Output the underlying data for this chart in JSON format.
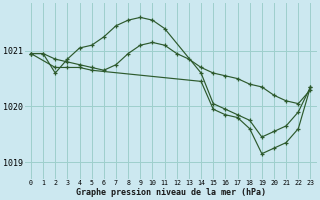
{
  "title": "Graphe pression niveau de la mer (hPa)",
  "background_color": "#cce8f0",
  "grid_color": "#9ecfcc",
  "line_color": "#2d5a2d",
  "ylim": [
    1018.7,
    1021.85
  ],
  "xlim": [
    -0.5,
    23.5
  ],
  "yticks": [
    1019,
    1020,
    1021
  ],
  "xticks": [
    0,
    1,
    2,
    3,
    4,
    5,
    6,
    7,
    8,
    9,
    10,
    11,
    12,
    13,
    14,
    15,
    16,
    17,
    18,
    19,
    20,
    21,
    22,
    23
  ],
  "series": [
    {
      "x": [
        0,
        1,
        2,
        3,
        4,
        5,
        6,
        7,
        8,
        9,
        10,
        11,
        12,
        13,
        14,
        15,
        16,
        17,
        18,
        19,
        20,
        21,
        22,
        23
      ],
      "y": [
        1020.95,
        1020.95,
        1020.85,
        1020.8,
        1020.75,
        1020.7,
        1020.65,
        1020.75,
        1020.95,
        1021.1,
        1021.15,
        1021.1,
        1020.95,
        1020.85,
        1020.7,
        1020.6,
        1020.55,
        1020.5,
        1020.4,
        1020.35,
        1020.2,
        1020.1,
        1020.05,
        1020.3
      ]
    },
    {
      "x": [
        0,
        1,
        2,
        3,
        4,
        5,
        6,
        7,
        8,
        9,
        10,
        11,
        14,
        15,
        16,
        17,
        18,
        19,
        20,
        21,
        22,
        23
      ],
      "y": [
        1020.95,
        1020.95,
        1020.6,
        1020.85,
        1021.05,
        1021.1,
        1021.25,
        1021.45,
        1021.55,
        1021.6,
        1021.55,
        1021.4,
        1020.6,
        1020.05,
        1019.95,
        1019.85,
        1019.75,
        1019.45,
        1019.55,
        1019.65,
        1019.9,
        1020.35
      ]
    },
    {
      "x": [
        0,
        2,
        3,
        4,
        5,
        14,
        15,
        16,
        17,
        18,
        19,
        20,
        21,
        22,
        23
      ],
      "y": [
        1020.95,
        1020.7,
        1020.7,
        1020.7,
        1020.65,
        1020.45,
        1019.95,
        1019.85,
        1019.8,
        1019.6,
        1019.15,
        1019.25,
        1019.35,
        1019.6,
        1020.35
      ]
    }
  ]
}
